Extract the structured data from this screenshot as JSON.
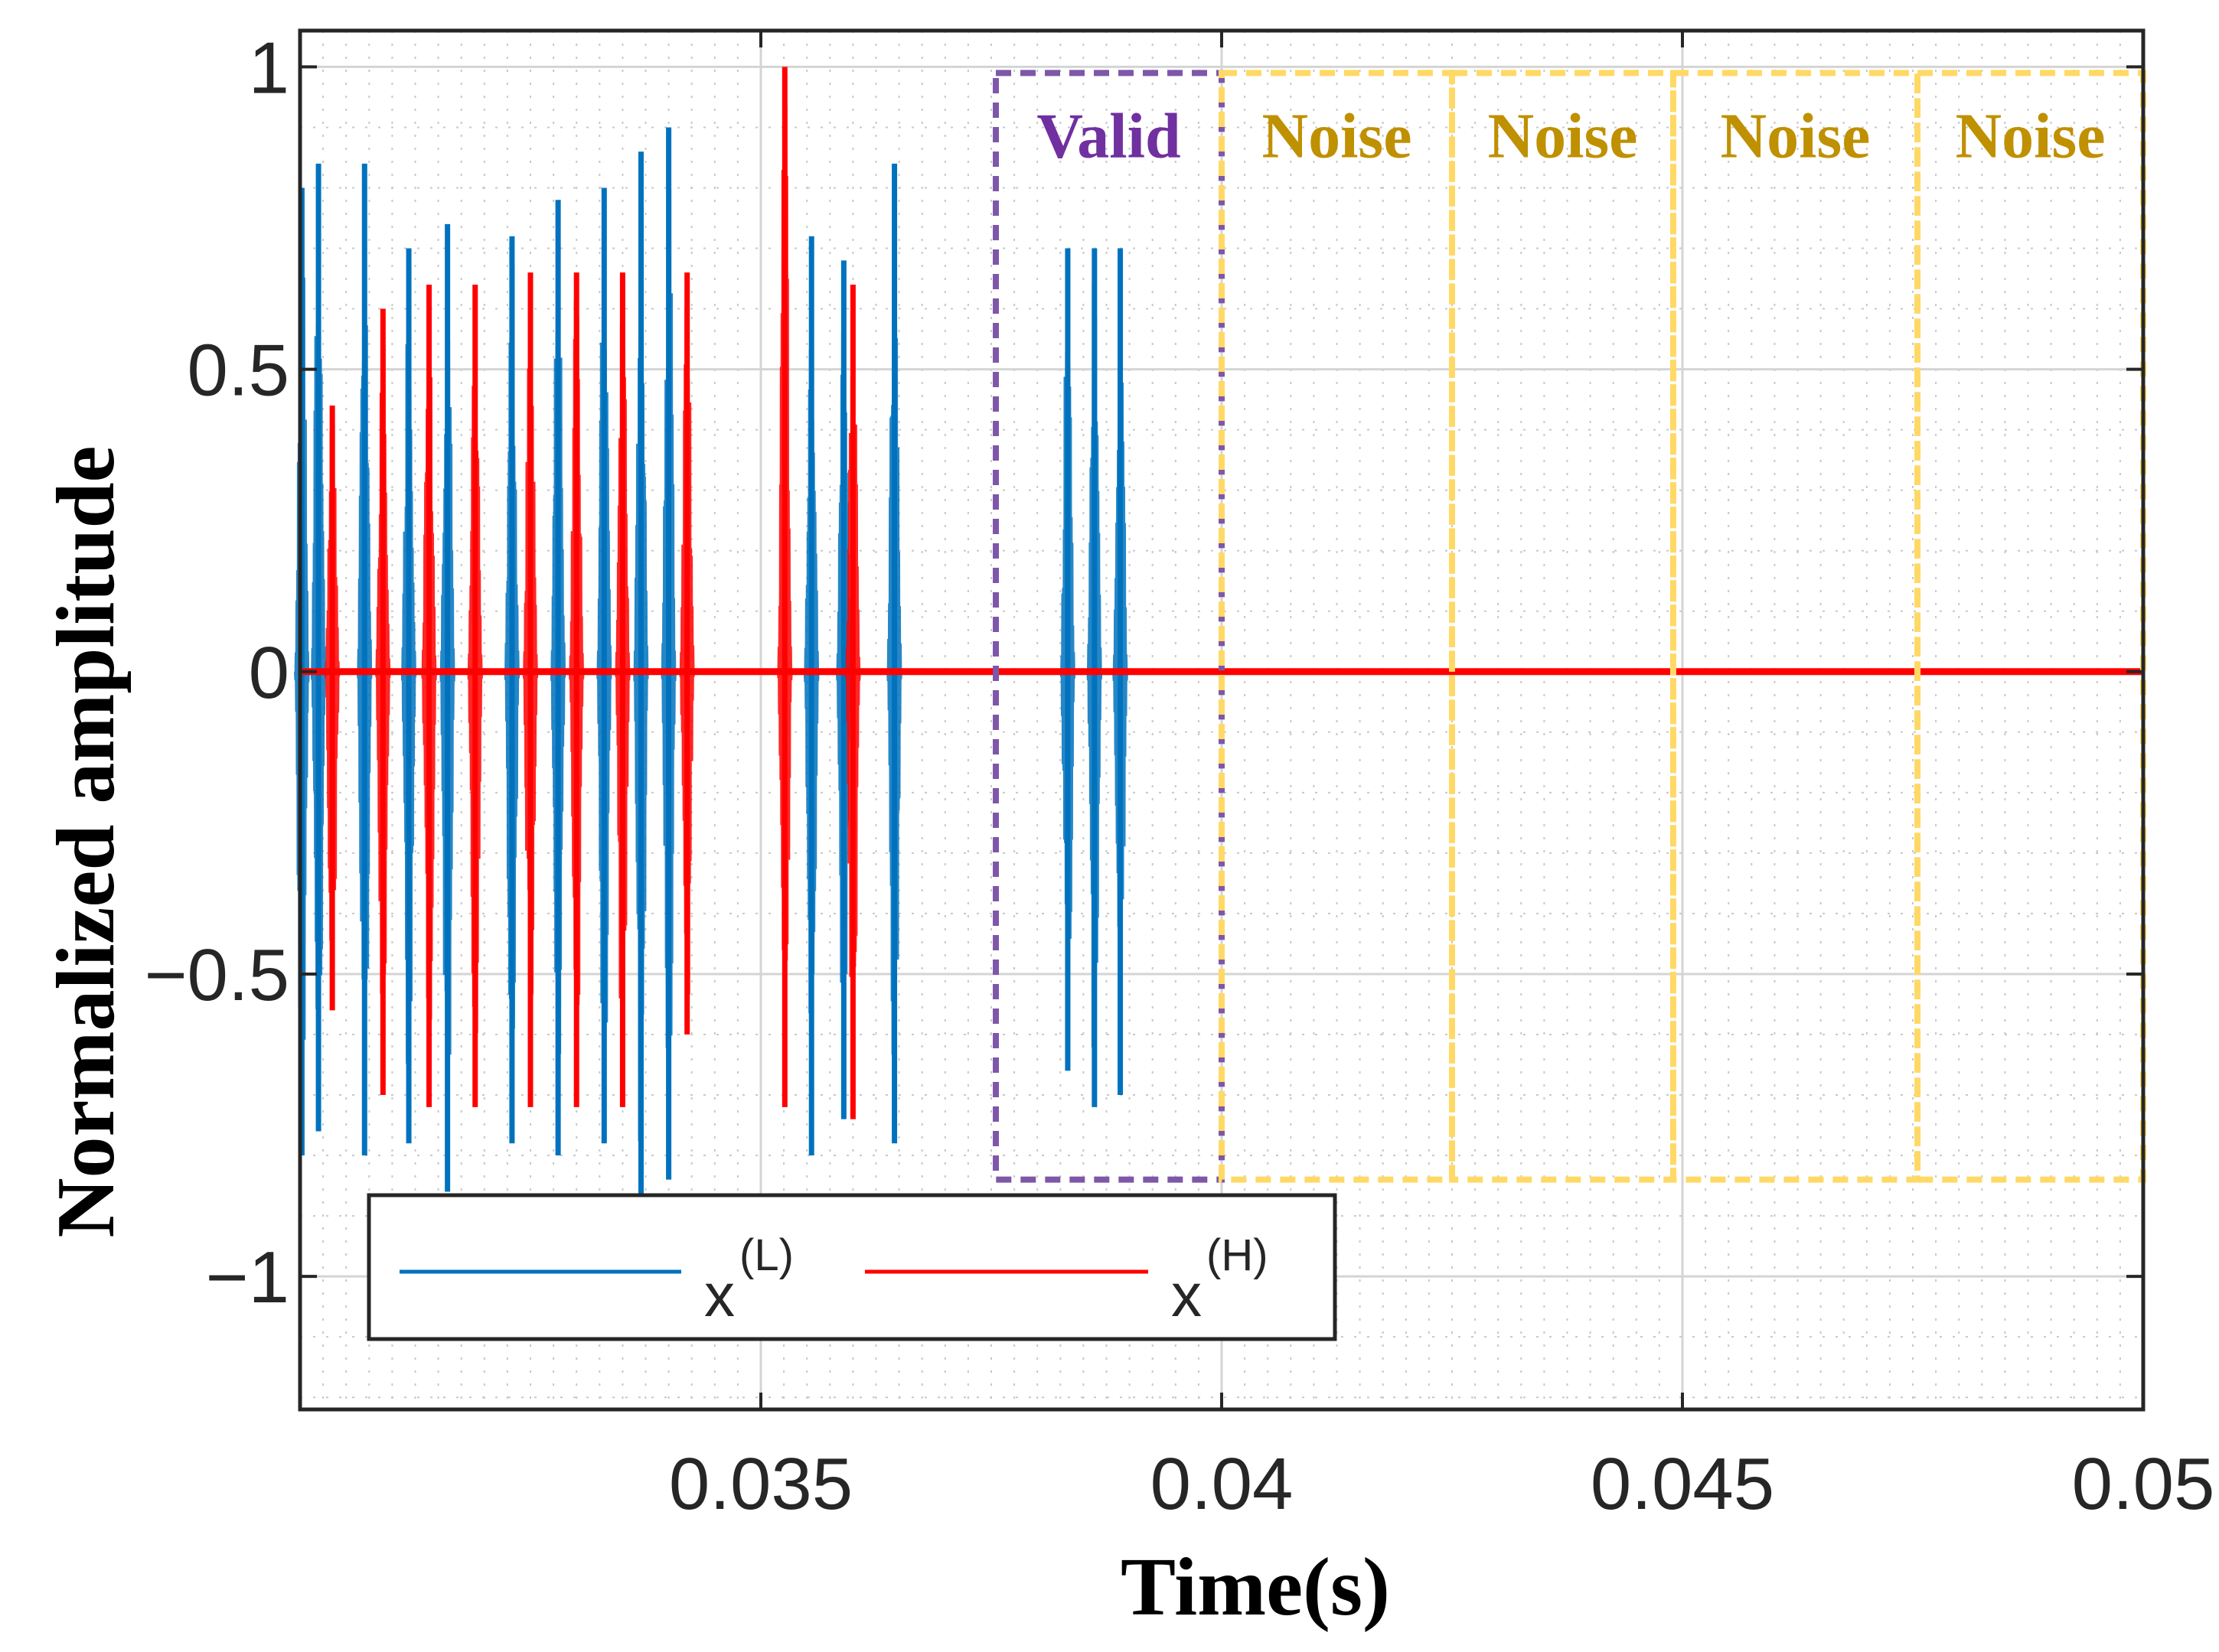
{
  "chart_data": {
    "type": "line",
    "title": "",
    "xlabel": "Time(s)",
    "ylabel": "Normalized amplitude",
    "xlim": [
      0.03,
      0.05
    ],
    "ylim": [
      -1.22,
      1.06
    ],
    "grid": true,
    "minor_grid": true,
    "x_ticks": [
      {
        "value": 0.035,
        "label": "0.035"
      },
      {
        "value": 0.04,
        "label": "0.04"
      },
      {
        "value": 0.045,
        "label": "0.045"
      },
      {
        "value": 0.05,
        "label": "0.05"
      }
    ],
    "y_ticks": [
      {
        "value": 1,
        "label": "1"
      },
      {
        "value": 0.5,
        "label": "0.5"
      },
      {
        "value": 0,
        "label": "0"
      },
      {
        "value": -0.5,
        "label": "−0.5"
      },
      {
        "value": -1,
        "label": "−1"
      }
    ],
    "legend": {
      "position": "bottom-left",
      "entries": [
        {
          "name": "x",
          "sup": "(L)",
          "color": "#0072BD"
        },
        {
          "name": "x",
          "sup": "(H)",
          "color": "#FF0000"
        }
      ]
    },
    "series": [
      {
        "name": "x(L)",
        "color": "#0072BD",
        "type": "bursts",
        "bursts": [
          {
            "t": 0.03002,
            "max": 0.8,
            "min": -0.8
          },
          {
            "t": 0.0302,
            "max": 0.84,
            "min": -0.76
          },
          {
            "t": 0.0307,
            "max": 0.84,
            "min": -0.8
          },
          {
            "t": 0.03118,
            "max": 0.7,
            "min": -0.78
          },
          {
            "t": 0.0316,
            "max": 0.74,
            "min": -0.86
          },
          {
            "t": 0.0323,
            "max": 0.72,
            "min": -0.78
          },
          {
            "t": 0.0328,
            "max": 0.78,
            "min": -0.8
          },
          {
            "t": 0.0333,
            "max": 0.8,
            "min": -0.78
          },
          {
            "t": 0.0337,
            "max": 0.86,
            "min": -0.9
          },
          {
            "t": 0.034,
            "max": 0.9,
            "min": -0.84
          },
          {
            "t": 0.03555,
            "max": 0.72,
            "min": -0.8
          },
          {
            "t": 0.0359,
            "max": 0.68,
            "min": -0.74
          },
          {
            "t": 0.03645,
            "max": 0.84,
            "min": -0.78
          },
          {
            "t": 0.03833,
            "max": 0.7,
            "min": -0.66
          },
          {
            "t": 0.03862,
            "max": 0.7,
            "min": -0.72
          },
          {
            "t": 0.0389,
            "max": 0.7,
            "min": -0.7
          }
        ]
      },
      {
        "name": "x(H)",
        "color": "#FF0000",
        "type": "bursts",
        "bursts": [
          {
            "t": 0.03035,
            "max": 0.44,
            "min": -0.56
          },
          {
            "t": 0.0309,
            "max": 0.6,
            "min": -0.7
          },
          {
            "t": 0.0314,
            "max": 0.64,
            "min": -0.72
          },
          {
            "t": 0.0319,
            "max": 0.64,
            "min": -0.72
          },
          {
            "t": 0.0325,
            "max": 0.66,
            "min": -0.72
          },
          {
            "t": 0.033,
            "max": 0.66,
            "min": -0.72
          },
          {
            "t": 0.0335,
            "max": 0.66,
            "min": -0.72
          },
          {
            "t": 0.0342,
            "max": 0.66,
            "min": -0.6
          },
          {
            "t": 0.03526,
            "max": 1.0,
            "min": -0.72
          },
          {
            "t": 0.036,
            "max": 0.64,
            "min": -0.74
          }
        ]
      }
    ],
    "regions": [
      {
        "label": "Valid",
        "x0": 0.03755,
        "x1": 0.04,
        "y0": -0.84,
        "y1": 0.99,
        "color": "#7E57A8",
        "text_color": "#7030A0"
      },
      {
        "label": "Noise",
        "x0": 0.04,
        "x1": 0.0425,
        "y0": -0.84,
        "y1": 0.99,
        "color": "#FFD966",
        "text_color": "#BF9000"
      },
      {
        "label": "Noise",
        "x0": 0.0425,
        "x1": 0.0449,
        "y0": -0.84,
        "y1": 0.99,
        "color": "#FFD966",
        "text_color": "#BF9000"
      },
      {
        "label": "Noise",
        "x0": 0.0449,
        "x1": 0.04755,
        "y0": -0.84,
        "y1": 0.99,
        "color": "#FFD966",
        "text_color": "#BF9000"
      },
      {
        "label": "Noise",
        "x0": 0.04755,
        "x1": 0.05,
        "y0": -0.84,
        "y1": 0.99,
        "color": "#FFD966",
        "text_color": "#BF9000"
      }
    ]
  }
}
